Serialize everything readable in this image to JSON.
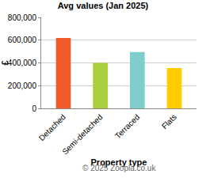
{
  "chart_data": {
    "type": "bar",
    "title": "Avg values (Jan 2025)",
    "x_label": "Property type",
    "y_label": "£",
    "categories": [
      "Detached",
      "Semi-detached",
      "Terraced",
      "Flats"
    ],
    "values": [
      620000,
      400000,
      495000,
      355000
    ],
    "colors": [
      "#f15a29",
      "#a7d03a",
      "#7fcdcd",
      "#ffcc00"
    ],
    "ylim": [
      0,
      800000
    ],
    "yticks": [
      0,
      {
        "value": 200000,
        "label": "200,000"
      },
      {
        "value": 400000,
        "label": "400,000"
      },
      {
        "value": 600000,
        "label": "600,000"
      },
      {
        "value": 800000,
        "label": "800,000"
      }
    ],
    "grid": true,
    "annotations": [
      "© 2025 Zoopla.co.uk"
    ]
  }
}
